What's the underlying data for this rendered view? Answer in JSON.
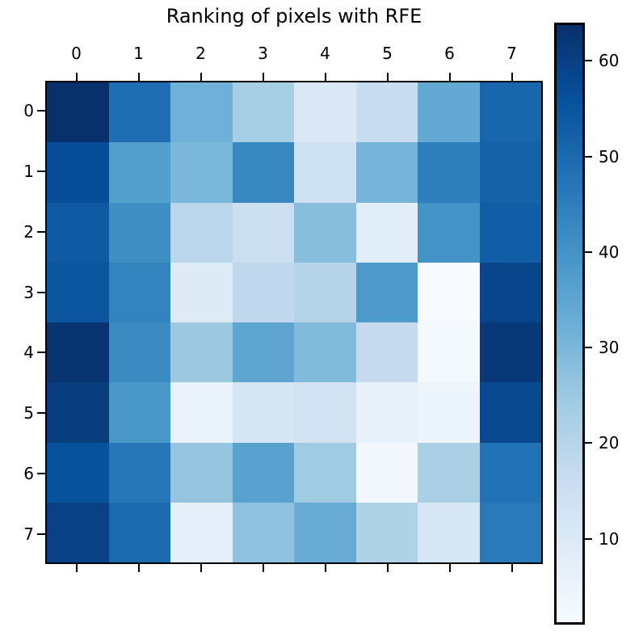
{
  "figure": {
    "title": "Ranking of pixels with RFE"
  },
  "axes": {
    "x_tick_labels": [
      "0",
      "1",
      "2",
      "3",
      "4",
      "5",
      "6",
      "7"
    ],
    "y_tick_labels": [
      "0",
      "1",
      "2",
      "3",
      "4",
      "5",
      "6",
      "7"
    ]
  },
  "colorbar": {
    "tick_labels": [
      "10",
      "20",
      "30",
      "40",
      "50",
      "60"
    ],
    "tick_values": [
      10,
      20,
      30,
      40,
      50,
      60
    ]
  },
  "chart_data": {
    "type": "heatmap",
    "title": "Ranking of pixels with RFE",
    "x": [
      0,
      1,
      2,
      3,
      4,
      5,
      6,
      7
    ],
    "y": [
      0,
      1,
      2,
      3,
      4,
      5,
      6,
      7
    ],
    "vmin": 1,
    "vmax": 64,
    "colormap": "Blues",
    "colormap_anchors": [
      "#f7fbff",
      "#deebf7",
      "#c6dbef",
      "#9ecae1",
      "#6baed6",
      "#4292c6",
      "#2171b5",
      "#08519c",
      "#08306b"
    ],
    "legend_position": "right-colorbar",
    "grid": false,
    "matrix": [
      [
        64,
        49,
        32,
        23,
        10,
        16,
        34,
        51
      ],
      [
        57,
        37,
        30,
        43,
        14,
        31,
        45,
        52
      ],
      [
        54,
        41,
        19,
        15,
        28,
        8,
        40,
        53
      ],
      [
        55,
        44,
        9,
        18,
        20,
        38,
        1,
        59
      ],
      [
        63,
        42,
        25,
        35,
        29,
        17,
        2,
        62
      ],
      [
        61,
        39,
        5,
        12,
        13,
        6,
        4,
        58
      ],
      [
        56,
        47,
        26,
        36,
        24,
        3,
        22,
        48
      ],
      [
        60,
        50,
        7,
        27,
        33,
        21,
        11,
        46
      ]
    ]
  }
}
